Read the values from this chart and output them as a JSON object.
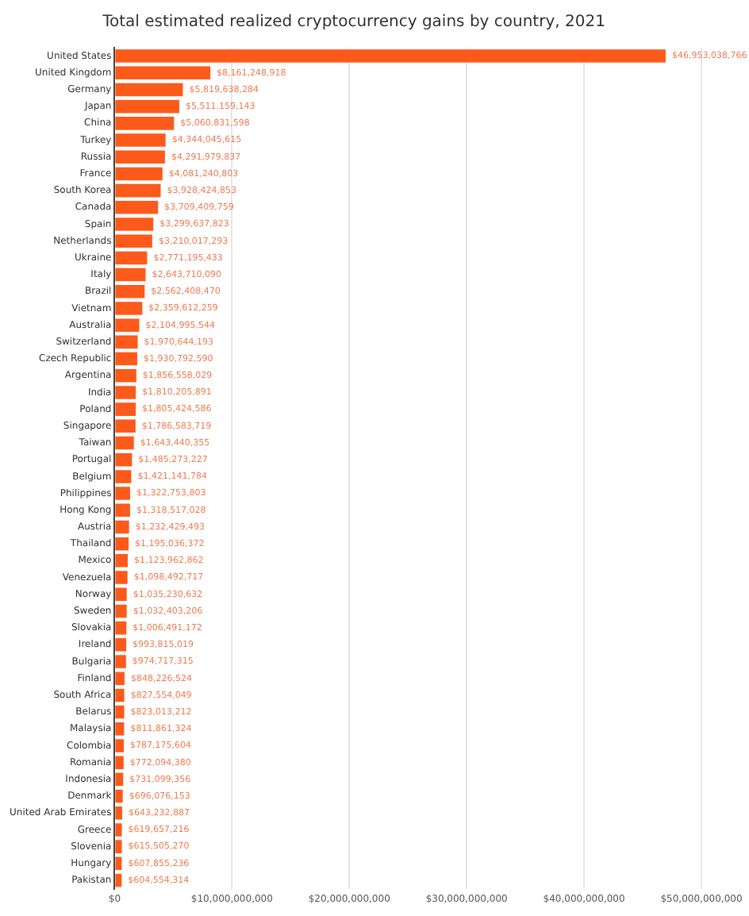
{
  "chart_data": {
    "type": "bar",
    "orientation": "horizontal",
    "title": "Total estimated realized cryptocurrency gains by country, 2021",
    "categories": [
      "United States",
      "United Kingdom",
      "Germany",
      "Japan",
      "China",
      "Turkey",
      "Russia",
      "France",
      "South Korea",
      "Canada",
      "Spain",
      "Netherlands",
      "Ukraine",
      "Italy",
      "Brazil",
      "Vietnam",
      "Australia",
      "Switzerland",
      "Czech Republic",
      "Argentina",
      "India",
      "Poland",
      "Singapore",
      "Taiwan",
      "Portugal",
      "Belgium",
      "Philippines",
      "Hong Kong",
      "Austria",
      "Thailand",
      "Mexico",
      "Venezuela",
      "Norway",
      "Sweden",
      "Slovakia",
      "Ireland",
      "Bulgaria",
      "Finland",
      "South Africa",
      "Belarus",
      "Malaysia",
      "Colombia",
      "Romania",
      "Indonesia",
      "Denmark",
      "United Arab Emirates",
      "Greece",
      "Slovenia",
      "Hungary",
      "Pakistan"
    ],
    "values": [
      46953038766,
      8161248918,
      5819638284,
      5511159143,
      5060831598,
      4344045615,
      4291979837,
      4081240803,
      3928424853,
      3709409759,
      3299637823,
      3210017293,
      2771195433,
      2643710090,
      2562408470,
      2359612259,
      2104995544,
      1970644193,
      1930792590,
      1856558029,
      1810205891,
      1805424586,
      1786583719,
      1643440355,
      1485273227,
      1421141784,
      1322753803,
      1318517028,
      1232429493,
      1195036372,
      1123962862,
      1098492717,
      1035230632,
      1032403206,
      1006491172,
      993815019,
      974717315,
      848226524,
      827554049,
      823013212,
      811861324,
      787175604,
      772094380,
      731099356,
      696076153,
      643232887,
      619657216,
      615505270,
      607855236,
      604554314
    ],
    "value_labels": [
      "$46,953,038,766",
      "$8,161,248,918",
      "$5,819,638,284",
      "$5,511,159,143",
      "$5,060,831,598",
      "$4,344,045,615",
      "$4,291,979,837",
      "$4,081,240,803",
      "$3,928,424,853",
      "$3,709,409,759",
      "$3,299,637,823",
      "$3,210,017,293",
      "$2,771,195,433",
      "$2,643,710,090",
      "$2,562,408,470",
      "$2,359,612,259",
      "$2,104,995,544",
      "$1,970,644,193",
      "$1,930,792,590",
      "$1,856,558,029",
      "$1,810,205,891",
      "$1,805,424,586",
      "$1,786,583,719",
      "$1,643,440,355",
      "$1,485,273,227",
      "$1,421,141,784",
      "$1,322,753,803",
      "$1,318,517,028",
      "$1,232,429,493",
      "$1,195,036,372",
      "$1,123,962,862",
      "$1,098,492,717",
      "$1,035,230,632",
      "$1,032,403,206",
      "$1,006,491,172",
      "$993,815,019",
      "$974,717,315",
      "$848,226,524",
      "$827,554,049",
      "$823,013,212",
      "$811,861,324",
      "$787,175,604",
      "$772,094,380",
      "$731,099,356",
      "$696,076,153",
      "$643,232,887",
      "$619,657,216",
      "$615,505,270",
      "$607,855,236",
      "$604,554,314"
    ],
    "color": "#fc5a1b",
    "xlim": [
      0,
      50000000000
    ],
    "xticks": [
      {
        "value": 0,
        "label": "$0"
      },
      {
        "value": 10000000000,
        "label": "$10,000,000,000"
      },
      {
        "value": 20000000000,
        "label": "$20,000,000,000"
      },
      {
        "value": 30000000000,
        "label": "$30,000,000,000"
      },
      {
        "value": 40000000000,
        "label": "$40,000,000,000"
      },
      {
        "value": 50000000000,
        "label": "$50,000,000,000"
      }
    ],
    "grid": "x",
    "legend": false
  }
}
